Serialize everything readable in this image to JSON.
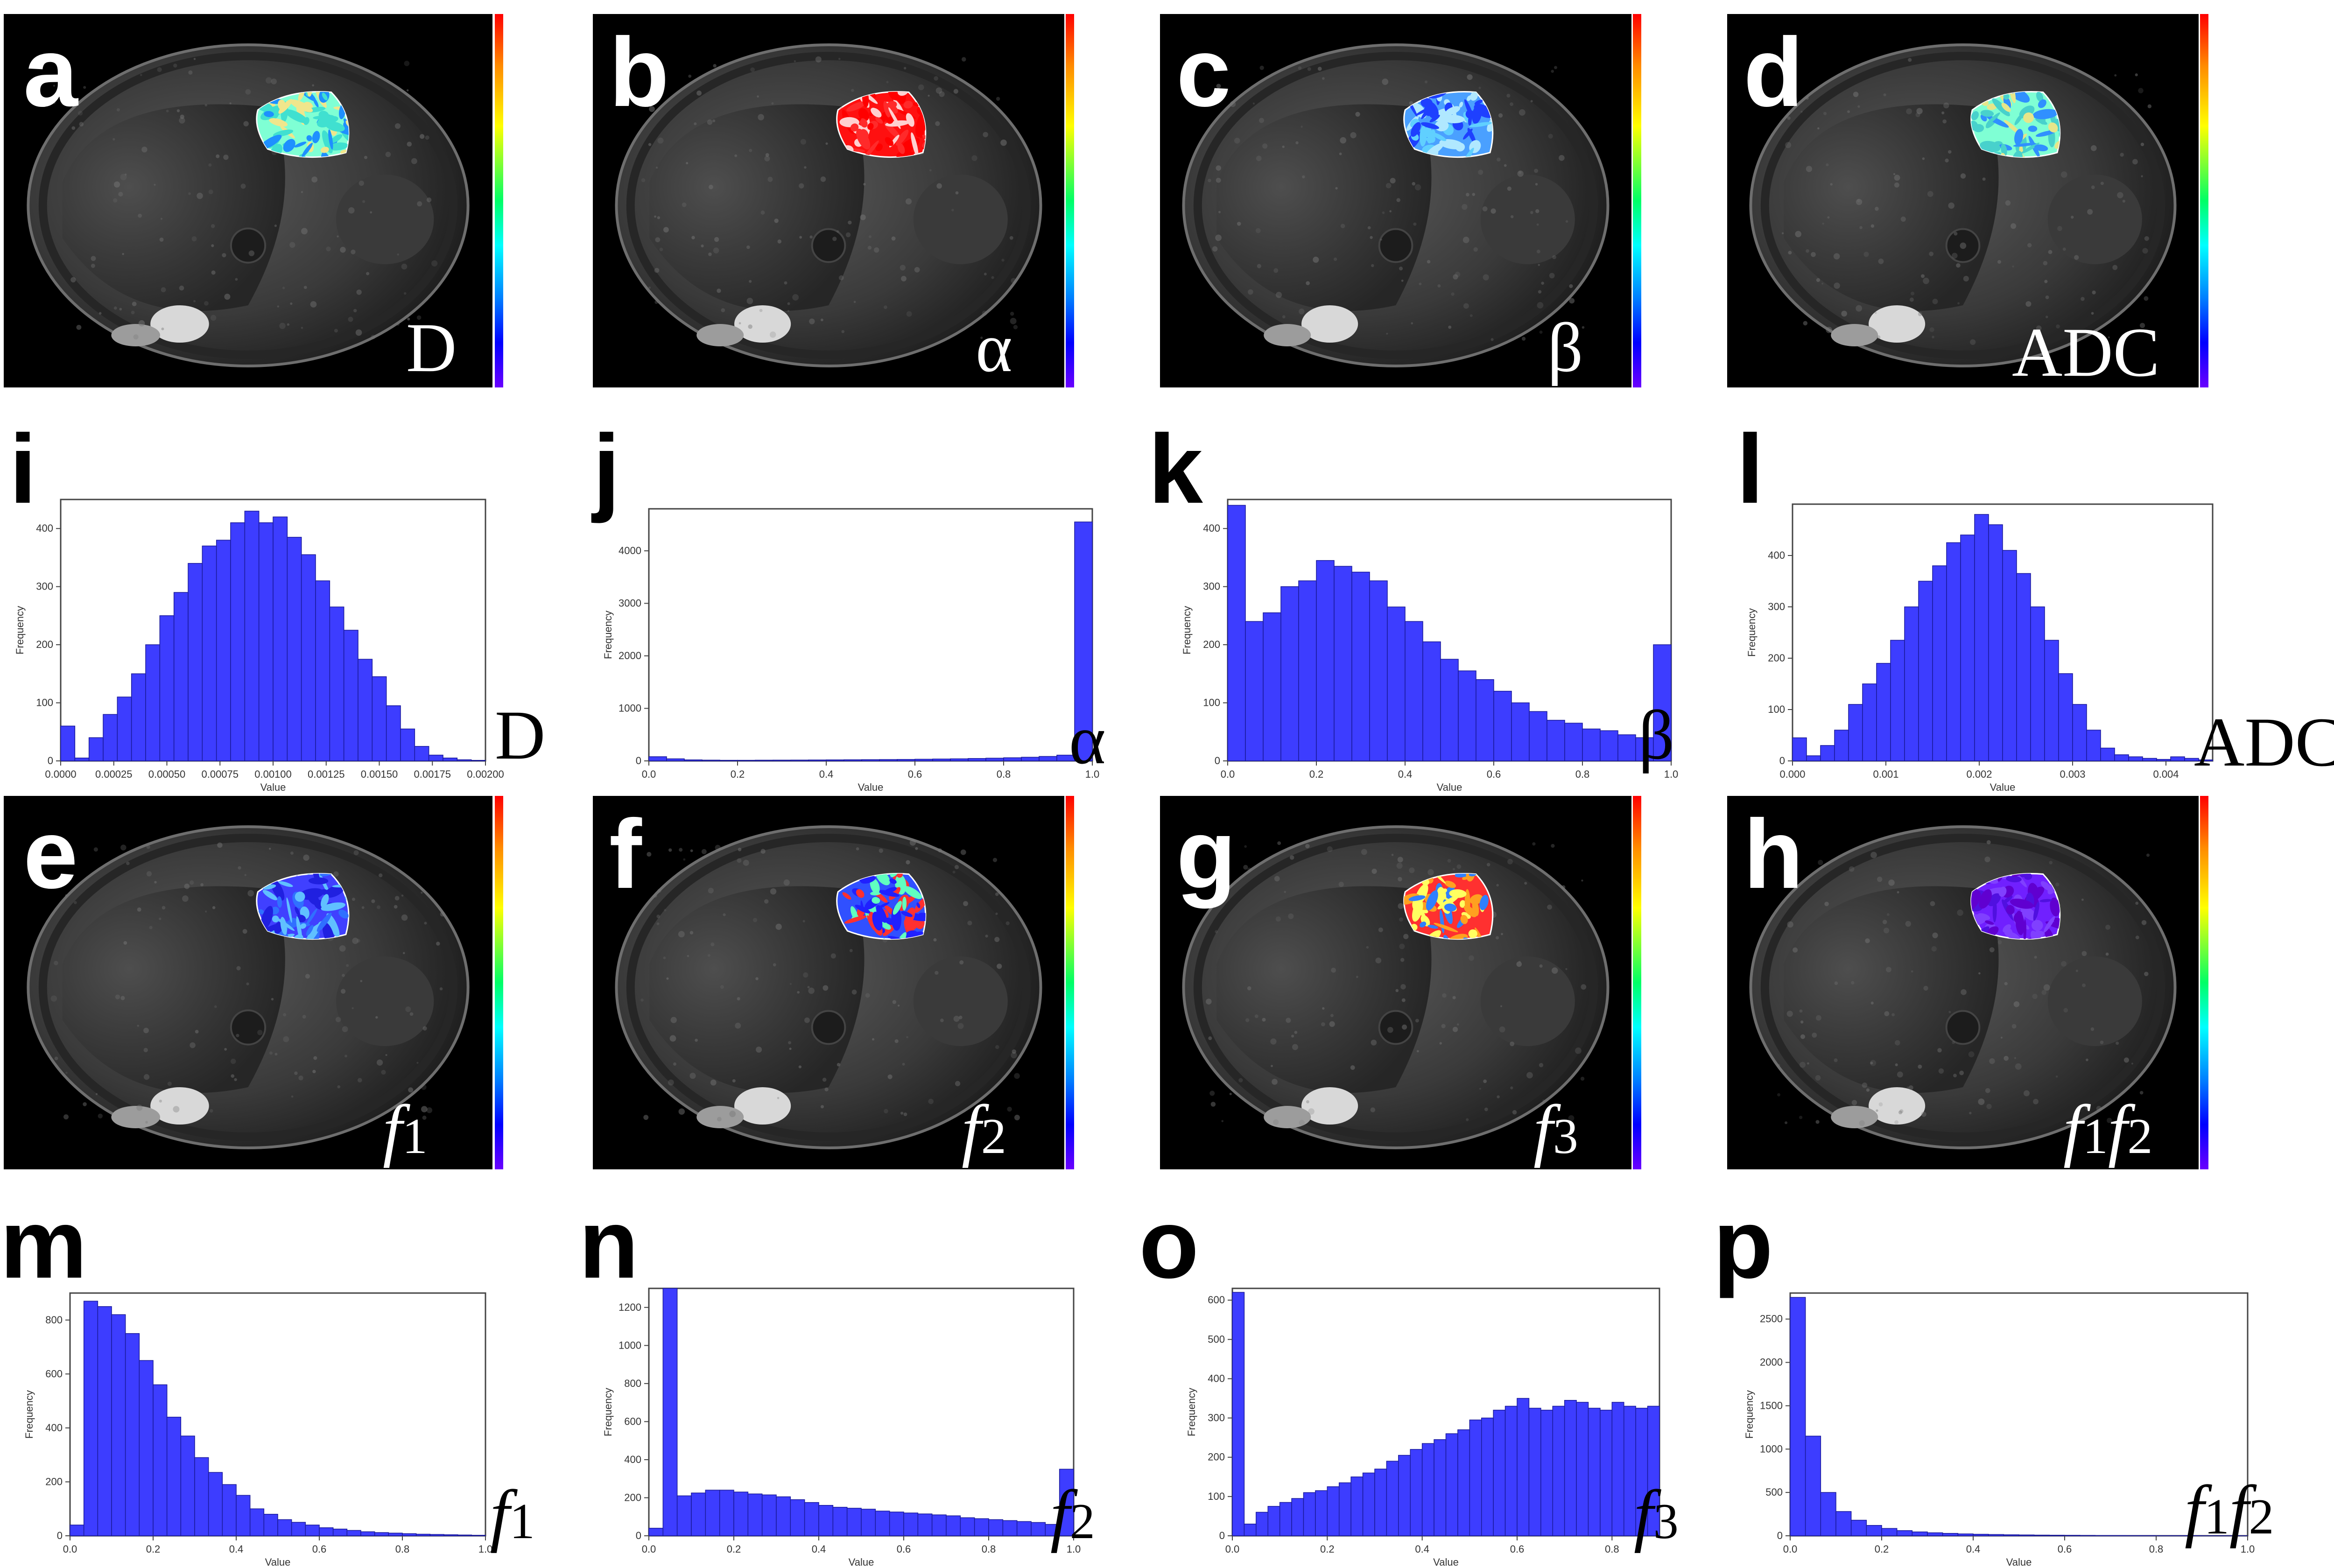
{
  "maps": [
    {
      "id": "a",
      "letter": "a",
      "label": "D",
      "italic": false,
      "tumor": [
        "#7fffd4",
        "#40e0d0",
        "#f0e68c",
        "#1e90ff"
      ]
    },
    {
      "id": "b",
      "letter": "b",
      "label": "α",
      "italic": false,
      "tumor": [
        "#ff1010",
        "#ff0000",
        "#ff2a2a",
        "#ffd0d0"
      ]
    },
    {
      "id": "c",
      "letter": "c",
      "label": "β",
      "italic": false,
      "tumor": [
        "#4aa0ff",
        "#1e40ff",
        "#60d0ff",
        "#b0e8ff"
      ]
    },
    {
      "id": "d",
      "letter": "d",
      "label": "ADC",
      "italic": false,
      "tumor": [
        "#7fffd4",
        "#48d1cc",
        "#e6e68a",
        "#3090ff"
      ]
    },
    {
      "id": "e",
      "letter": "e",
      "label": "f1",
      "italic": true,
      "tumor": [
        "#4040ff",
        "#3070ff",
        "#2020e0",
        "#60c0ff"
      ]
    },
    {
      "id": "f",
      "letter": "f",
      "label": "f2",
      "italic": true,
      "tumor": [
        "#3050ff",
        "#ff3030",
        "#60ffc0",
        "#2020ff"
      ]
    },
    {
      "id": "g",
      "letter": "g",
      "label": "f3",
      "italic": true,
      "tumor": [
        "#ff3030",
        "#ffa020",
        "#3080ff",
        "#ffff60"
      ]
    },
    {
      "id": "h",
      "letter": "h",
      "label": "f1f2",
      "italic": true,
      "tumor": [
        "#7020ff",
        "#5010e0",
        "#8040ff",
        "#6000d0"
      ]
    }
  ],
  "chart_data": [
    {
      "id": "i",
      "letter": "i",
      "label": "D",
      "type": "bar",
      "xlabel": "Value",
      "ylabel": "Frequency",
      "xlim": [
        0.0,
        0.002
      ],
      "xticks": [
        "0.0000",
        "0.00025",
        "0.00050",
        "0.00075",
        "0.00100",
        "0.00125",
        "0.00150",
        "0.00175",
        "0.00200"
      ],
      "ylim": [
        0,
        450
      ],
      "yticks": [
        "0",
        "100",
        "200",
        "300",
        "400"
      ],
      "values": [
        60,
        5,
        40,
        80,
        110,
        150,
        200,
        250,
        290,
        340,
        370,
        380,
        410,
        430,
        410,
        420,
        385,
        355,
        310,
        265,
        225,
        175,
        145,
        95,
        55,
        25,
        10,
        5,
        2,
        1
      ]
    },
    {
      "id": "j",
      "letter": "j",
      "label": "α",
      "type": "bar",
      "xlabel": "Value",
      "ylabel": "Frequency",
      "xlim": [
        0.0,
        1.0
      ],
      "xticks": [
        "0.0",
        "0.2",
        "0.4",
        "0.6",
        "0.8",
        "1.0"
      ],
      "ylim": [
        0,
        4800
      ],
      "yticks": [
        "0",
        "1000",
        "2000",
        "3000",
        "4000"
      ],
      "values": [
        80,
        40,
        20,
        15,
        12,
        12,
        14,
        15,
        16,
        18,
        20,
        22,
        24,
        26,
        28,
        32,
        36,
        40,
        46,
        52,
        60,
        70,
        85,
        110,
        4550
      ]
    },
    {
      "id": "k",
      "letter": "k",
      "label": "β",
      "type": "bar",
      "xlabel": "Value",
      "ylabel": "Frequency",
      "xlim": [
        0.0,
        1.0
      ],
      "xticks": [
        "0.0",
        "0.2",
        "0.4",
        "0.6",
        "0.8",
        "1.0"
      ],
      "ylim": [
        0,
        450
      ],
      "yticks": [
        "0",
        "100",
        "200",
        "300",
        "400"
      ],
      "values": [
        440,
        240,
        255,
        300,
        310,
        345,
        335,
        325,
        310,
        265,
        240,
        205,
        175,
        155,
        140,
        120,
        100,
        85,
        70,
        65,
        55,
        52,
        45,
        40,
        200
      ]
    },
    {
      "id": "l",
      "letter": "l",
      "label": "ADC",
      "type": "bar",
      "xlabel": "Value",
      "ylabel": "Frequency",
      "xlim": [
        0.0,
        0.0045
      ],
      "xticks": [
        "0.000",
        "0.001",
        "0.002",
        "0.003",
        "0.004"
      ],
      "ylim": [
        0,
        500
      ],
      "yticks": [
        "0",
        "100",
        "200",
        "300",
        "400"
      ],
      "values": [
        45,
        10,
        30,
        60,
        110,
        150,
        190,
        235,
        300,
        350,
        380,
        425,
        440,
        480,
        460,
        410,
        365,
        300,
        235,
        170,
        110,
        60,
        25,
        12,
        8,
        5,
        3,
        8,
        5,
        2
      ]
    },
    {
      "id": "m",
      "letter": "m",
      "label": "f1",
      "type": "bar",
      "xlabel": "Value",
      "ylabel": "Frequency",
      "xlim": [
        0.0,
        1.0
      ],
      "xticks": [
        "0.0",
        "0.2",
        "0.4",
        "0.6",
        "0.8",
        "1.0"
      ],
      "ylim": [
        0,
        900
      ],
      "yticks": [
        "0",
        "200",
        "400",
        "600",
        "800"
      ],
      "values": [
        40,
        870,
        850,
        820,
        750,
        650,
        560,
        440,
        370,
        290,
        235,
        190,
        150,
        100,
        80,
        60,
        50,
        40,
        30,
        25,
        20,
        15,
        12,
        10,
        8,
        6,
        5,
        4,
        3,
        2
      ]
    },
    {
      "id": "n",
      "letter": "n",
      "label": "f2",
      "type": "bar",
      "xlabel": "Value",
      "ylabel": "Frequency",
      "xlim": [
        0.0,
        1.0
      ],
      "xticks": [
        "0.0",
        "0.2",
        "0.4",
        "0.6",
        "0.8",
        "1.0"
      ],
      "ylim": [
        0,
        1300
      ],
      "yticks": [
        "0",
        "200",
        "400",
        "600",
        "800",
        "1000",
        "1200"
      ],
      "values": [
        40,
        1300,
        210,
        225,
        240,
        240,
        230,
        220,
        215,
        205,
        190,
        175,
        160,
        150,
        145,
        140,
        130,
        125,
        120,
        115,
        110,
        105,
        95,
        90,
        85,
        80,
        75,
        70,
        60,
        350
      ]
    },
    {
      "id": "o",
      "letter": "o",
      "label": "f3",
      "type": "bar",
      "xlabel": "Value",
      "ylabel": "Frequency",
      "xlim": [
        0.0,
        0.9
      ],
      "xticks": [
        "0.0",
        "0.2",
        "0.4",
        "0.6",
        "0.8"
      ],
      "ylim": [
        0,
        630
      ],
      "yticks": [
        "0",
        "100",
        "200",
        "300",
        "400",
        "500",
        "600"
      ],
      "values": [
        620,
        30,
        60,
        75,
        85,
        95,
        110,
        115,
        125,
        135,
        150,
        160,
        170,
        190,
        205,
        220,
        235,
        245,
        260,
        270,
        295,
        300,
        320,
        330,
        350,
        325,
        320,
        330,
        345,
        340,
        325,
        320,
        340,
        330,
        325,
        330
      ]
    },
    {
      "id": "p",
      "letter": "p",
      "label": "f1f2",
      "type": "bar",
      "xlabel": "Value",
      "ylabel": "Frequency",
      "xlim": [
        0.0,
        1.0
      ],
      "xticks": [
        "0.0",
        "0.2",
        "0.4",
        "0.6",
        "0.8",
        "1.0"
      ],
      "ylim": [
        0,
        2800
      ],
      "yticks": [
        "0",
        "500",
        "1000",
        "1500",
        "2000",
        "2500"
      ],
      "values": [
        2750,
        1150,
        500,
        280,
        180,
        120,
        85,
        60,
        45,
        35,
        28,
        22,
        18,
        15,
        12,
        10,
        8,
        7,
        6,
        5,
        4,
        4,
        3,
        3,
        2,
        2,
        2,
        1,
        1,
        1
      ]
    }
  ]
}
